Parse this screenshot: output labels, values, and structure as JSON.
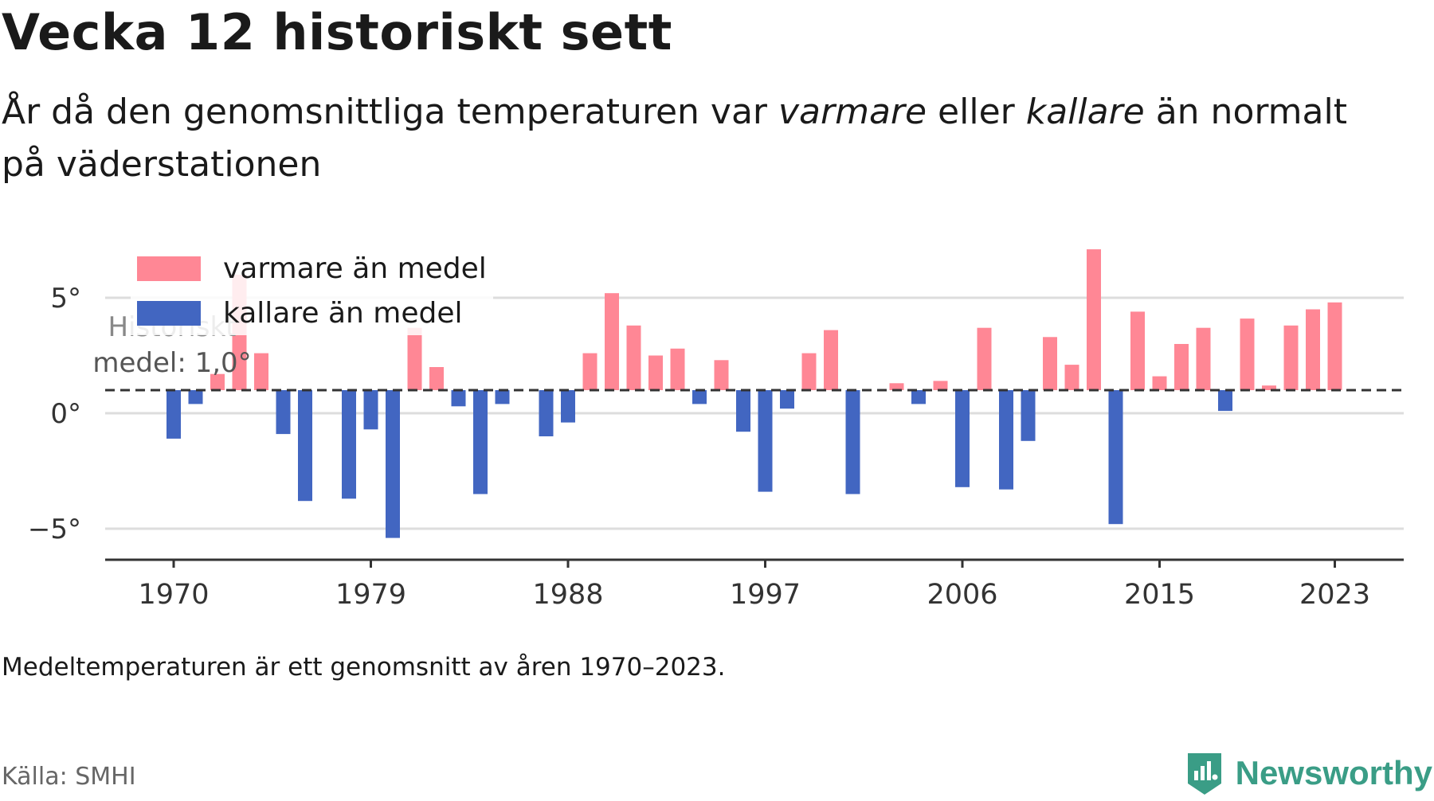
{
  "title": "Vecka 12 historiskt sett",
  "subtitle": {
    "part1": "År då den genomsnittliga temperaturen var ",
    "em1": "varmare",
    "part2": " eller ",
    "em2": "kallare",
    "part3": " än normalt på väderstationen"
  },
  "note": "Medeltemperaturen är ett genomsnitt av åren 1970–2023.",
  "source": "Källa: SMHI",
  "brand": "Newsworthy",
  "colors": {
    "warm": "#ff8795",
    "cold": "#4266c1",
    "brand": "#3a9d86"
  },
  "chart_data": {
    "type": "bar",
    "mean": 1.0,
    "mean_label_line1": "Historiskt",
    "mean_label_line2": "medel: 1,0°",
    "legend": [
      {
        "name": "varmare än medel",
        "color": "#ff8795"
      },
      {
        "name": "kallare än medel",
        "color": "#4266c1"
      }
    ],
    "legend_position": "top-left",
    "grid": true,
    "ylim": [
      -6.3,
      7.5
    ],
    "yticks": [
      {
        "value": 5,
        "label": "5°"
      },
      {
        "value": 0,
        "label": "0°"
      },
      {
        "value": -5,
        "label": "−5°"
      }
    ],
    "xticks": [
      1970,
      1979,
      1988,
      1997,
      2006,
      2015,
      2023
    ],
    "x": [
      1970,
      1971,
      1972,
      1973,
      1974,
      1975,
      1976,
      1977,
      1978,
      1979,
      1980,
      1981,
      1982,
      1983,
      1984,
      1985,
      1986,
      1987,
      1988,
      1989,
      1990,
      1991,
      1992,
      1993,
      1994,
      1995,
      1996,
      1997,
      1998,
      1999,
      2000,
      2001,
      2002,
      2003,
      2004,
      2005,
      2006,
      2007,
      2008,
      2009,
      2010,
      2011,
      2012,
      2013,
      2014,
      2015,
      2016,
      2017,
      2018,
      2019,
      2020,
      2021,
      2022,
      2023
    ],
    "values": [
      -1.1,
      0.4,
      1.7,
      6.0,
      2.6,
      -0.9,
      -3.8,
      null,
      -3.7,
      -0.7,
      -5.4,
      3.7,
      2.0,
      0.3,
      -3.5,
      0.4,
      null,
      -1.0,
      -0.4,
      2.6,
      5.2,
      3.8,
      2.5,
      2.8,
      0.4,
      2.3,
      -0.8,
      -3.4,
      0.2,
      2.6,
      3.6,
      -3.5,
      null,
      1.3,
      0.4,
      1.4,
      -3.2,
      3.7,
      -3.3,
      -1.2,
      3.3,
      2.1,
      7.1,
      -4.8,
      4.4,
      1.6,
      3.0,
      3.7,
      0.1,
      4.1,
      1.2,
      3.8,
      4.5,
      4.8
    ]
  }
}
